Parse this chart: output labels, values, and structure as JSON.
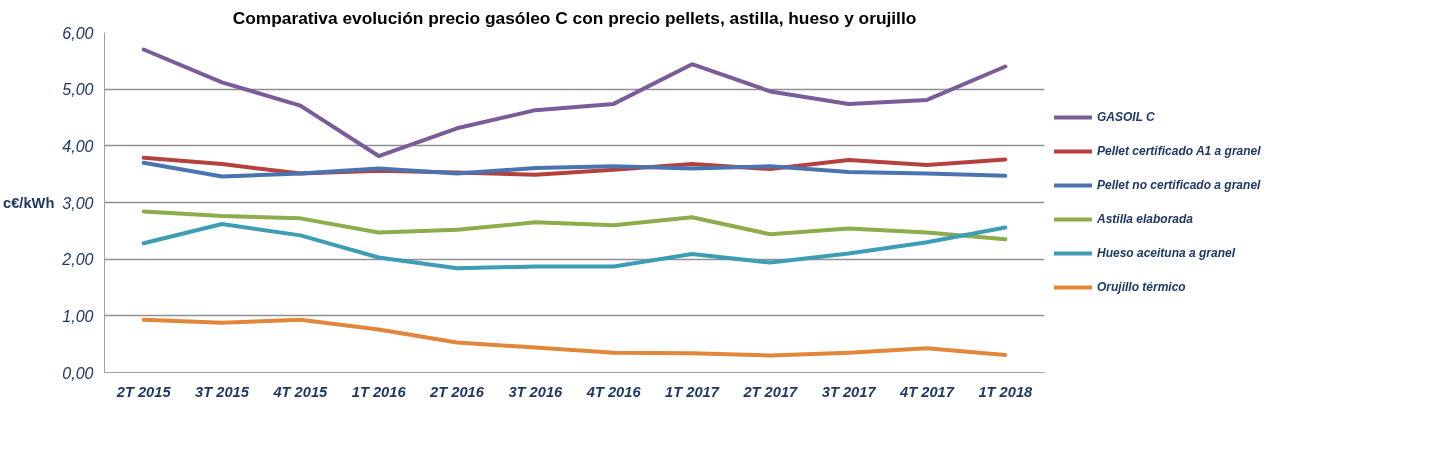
{
  "chart_data": {
    "type": "line",
    "title": "Comparativa evolución precio gasóleo C con precio pellets, astilla, hueso y orujillo",
    "ylabel": "c€/kWh",
    "categories": [
      "2T 2015",
      "3T 2015",
      "4T 2015",
      "1T 2016",
      "2T 2016",
      "3T 2016",
      "4T 2016",
      "1T 2017",
      "2T 2017",
      "3T 2017",
      "4T 2017",
      "1T 2018"
    ],
    "series": [
      {
        "name": "GASOIL C",
        "color": "#7a5c9a",
        "values": [
          5.7,
          5.12,
          4.71,
          3.82,
          4.31,
          4.63,
          4.74,
          5.44,
          4.96,
          4.74,
          4.81,
          5.4
        ]
      },
      {
        "name": "Pellet certificado A1 a granel",
        "color": "#b5413f",
        "values": [
          3.79,
          3.68,
          3.51,
          3.56,
          3.53,
          3.49,
          3.58,
          3.68,
          3.59,
          3.75,
          3.66,
          3.76
        ]
      },
      {
        "name": "Pellet no certificado a granel",
        "color": "#4a74b0",
        "values": [
          3.7,
          3.46,
          3.51,
          3.6,
          3.51,
          3.61,
          3.64,
          3.6,
          3.64,
          3.54,
          3.51,
          3.47
        ]
      },
      {
        "name": "Astilla elaborada",
        "color": "#8dac4b",
        "values": [
          2.84,
          2.76,
          2.72,
          2.47,
          2.52,
          2.65,
          2.6,
          2.74,
          2.44,
          2.54,
          2.47,
          2.35
        ]
      },
      {
        "name": "Hueso aceituna a granel",
        "color": "#3d9db5",
        "values": [
          2.28,
          2.62,
          2.42,
          2.03,
          1.84,
          1.87,
          1.87,
          2.09,
          1.94,
          2.1,
          2.3,
          2.56
        ]
      },
      {
        "name": "Orujillo térmico",
        "color": "#e2873a",
        "values": [
          0.93,
          0.88,
          0.93,
          0.76,
          0.53,
          0.44,
          0.35,
          0.34,
          0.3,
          0.35,
          0.43,
          0.31
        ]
      }
    ],
    "ylim": [
      0,
      6
    ],
    "yticks": [
      {
        "value": 0,
        "label": "0,00"
      },
      {
        "value": 1,
        "label": "1,00"
      },
      {
        "value": 2,
        "label": "2,00"
      },
      {
        "value": 3,
        "label": "3,00"
      },
      {
        "value": 4,
        "label": "4,00"
      },
      {
        "value": 5,
        "label": "5,00"
      },
      {
        "value": 6,
        "label": "6,00"
      }
    ],
    "grid": "y",
    "legend": "right",
    "line_style": "solid"
  }
}
